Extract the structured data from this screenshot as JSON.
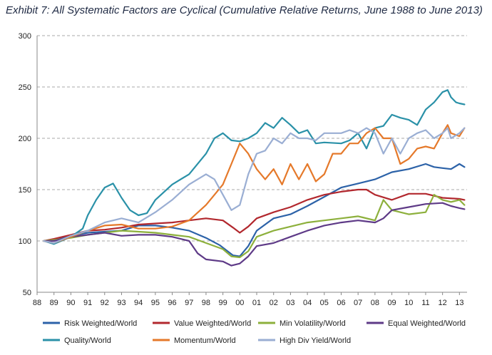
{
  "chart_data": {
    "type": "line",
    "title": "Exhibit 7: All Systematic Factors are Cyclical (Cumulative Relative Returns, June 1988 to June 2013)",
    "xlabel": "",
    "ylabel": "",
    "xlim": [
      1988.0,
      2013.45
    ],
    "ylim": [
      50,
      300
    ],
    "y_ticks": [
      50,
      100,
      150,
      200,
      250,
      300
    ],
    "x_ticks": [
      {
        "label": "88",
        "x": 1988
      },
      {
        "label": "89",
        "x": 1989
      },
      {
        "label": "90",
        "x": 1990
      },
      {
        "label": "91",
        "x": 1991
      },
      {
        "label": "92",
        "x": 1992
      },
      {
        "label": "93",
        "x": 1993
      },
      {
        "label": "94",
        "x": 1994
      },
      {
        "label": "95",
        "x": 1995
      },
      {
        "label": "96",
        "x": 1996
      },
      {
        "label": "97",
        "x": 1997
      },
      {
        "label": "98",
        "x": 1998
      },
      {
        "label": "99",
        "x": 1999
      },
      {
        "label": "00",
        "x": 2000
      },
      {
        "label": "01",
        "x": 2001
      },
      {
        "label": "02",
        "x": 2002
      },
      {
        "label": "03",
        "x": 2003
      },
      {
        "label": "04",
        "x": 2004
      },
      {
        "label": "05",
        "x": 2005
      },
      {
        "label": "06",
        "x": 2006
      },
      {
        "label": "07",
        "x": 2007
      },
      {
        "label": "08",
        "x": 2008
      },
      {
        "label": "09",
        "x": 2009
      },
      {
        "label": "10",
        "x": 2010
      },
      {
        "label": "11",
        "x": 2011
      },
      {
        "label": "12",
        "x": 2012
      },
      {
        "label": "13",
        "x": 2013
      }
    ],
    "grid": "horizontal dashed",
    "legend_position": "bottom",
    "series": [
      {
        "name": "Risk Weighted/World",
        "color": "#2c62a8",
        "x": [
          1988.4,
          1989,
          1989.5,
          1990,
          1991,
          1992,
          1993,
          1994,
          1995,
          1996,
          1997,
          1998,
          1998.8,
          1999.6,
          2000,
          2000.5,
          2001,
          2002,
          2003,
          2004,
          2005,
          2006,
          2007,
          2008,
          2009,
          2010,
          2011,
          2011.5,
          2012,
          2012.5,
          2013,
          2013.3
        ],
        "y": [
          100,
          101,
          103,
          105,
          108,
          109,
          110,
          115,
          115,
          113,
          110,
          103,
          96,
          86,
          85,
          95,
          110,
          122,
          126,
          134,
          143,
          152,
          156,
          160,
          167,
          170,
          175,
          172,
          171,
          170,
          175,
          172
        ]
      },
      {
        "name": "Value Weighted/World",
        "color": "#b2282e",
        "x": [
          1988.4,
          1989,
          1990,
          1991,
          1992,
          1993,
          1994,
          1995,
          1996,
          1997,
          1998,
          1999,
          1999.6,
          2000,
          2000.5,
          2001,
          2002,
          2003,
          2004,
          2005,
          2006,
          2007,
          2007.5,
          2008,
          2009,
          2010,
          2011,
          2012,
          2013,
          2013.3
        ],
        "y": [
          100,
          102,
          106,
          110,
          111,
          113,
          116,
          117,
          118,
          120,
          122,
          120,
          113,
          108,
          114,
          122,
          128,
          133,
          140,
          145,
          148,
          150,
          150,
          145,
          140,
          146,
          146,
          142,
          141,
          140
        ]
      },
      {
        "name": "Min Volatility/World",
        "color": "#8db03c",
        "x": [
          1988.4,
          1989,
          1990,
          1991,
          1992,
          1993,
          1994,
          1995,
          1996,
          1997,
          1998,
          1999,
          1999.5,
          2000,
          2000.5,
          2001,
          2002,
          2003,
          2004,
          2005,
          2006,
          2007,
          2008,
          2008.5,
          2009,
          2010,
          2011,
          2011.5,
          2012,
          2012.5,
          2013,
          2013.3
        ],
        "y": [
          100,
          101,
          103,
          106,
          108,
          110,
          109,
          108,
          106,
          104,
          98,
          92,
          85,
          84,
          90,
          104,
          110,
          114,
          118,
          120,
          122,
          124,
          120,
          140,
          130,
          126,
          128,
          145,
          140,
          138,
          140,
          135
        ]
      },
      {
        "name": "Equal Weighted/World",
        "color": "#5e3a87",
        "x": [
          1988.4,
          1989,
          1990,
          1991,
          1992,
          1993,
          1994,
          1995,
          1996,
          1997,
          1997.5,
          1998,
          1999,
          1999.5,
          2000,
          2000.5,
          2001,
          2002,
          2003,
          2004,
          2005,
          2006,
          2007,
          2008,
          2008.5,
          2009,
          2010,
          2011,
          2012,
          2012.5,
          2013,
          2013.3
        ],
        "y": [
          100,
          100,
          104,
          106,
          108,
          105,
          106,
          106,
          104,
          100,
          88,
          82,
          80,
          76,
          78,
          85,
          95,
          98,
          104,
          110,
          115,
          118,
          120,
          118,
          122,
          130,
          133,
          136,
          137,
          134,
          132,
          131
        ]
      },
      {
        "name": "Quality/World",
        "color": "#2a91a8",
        "x": [
          1988.4,
          1989,
          1990,
          1990.7,
          1991,
          1991.5,
          1992,
          1992.5,
          1993,
          1993.5,
          1994,
          1994.5,
          1995,
          1996,
          1997,
          1998,
          1998.5,
          1999,
          1999.5,
          2000,
          2000.5,
          2001,
          2001.5,
          2002,
          2002.5,
          2003,
          2003.5,
          2004,
          2004.5,
          2005,
          2006,
          2006.5,
          2007,
          2007.5,
          2008,
          2008.5,
          2009,
          2009.5,
          2010,
          2010.5,
          2011,
          2011.5,
          2012,
          2012.3,
          2012.5,
          2012.8,
          2013,
          2013.3
        ],
        "y": [
          100,
          97,
          104,
          112,
          125,
          140,
          152,
          156,
          142,
          130,
          125,
          127,
          140,
          155,
          165,
          185,
          200,
          205,
          198,
          197,
          200,
          205,
          215,
          210,
          220,
          213,
          205,
          208,
          195,
          196,
          195,
          198,
          205,
          190,
          210,
          212,
          223,
          220,
          218,
          213,
          228,
          235,
          245,
          247,
          240,
          235,
          234,
          233
        ]
      },
      {
        "name": "Momentum/World",
        "color": "#e5792a",
        "x": [
          1988.4,
          1989,
          1990,
          1991,
          1992,
          1993,
          1994,
          1995,
          1996,
          1997,
          1998,
          1998.5,
          1999,
          1999.5,
          2000,
          2000.5,
          2001,
          2001.5,
          2002,
          2002.5,
          2003,
          2003.5,
          2004,
          2004.5,
          2005,
          2005.5,
          2006,
          2006.5,
          2007,
          2007.5,
          2008,
          2008.5,
          2009,
          2009.5,
          2010,
          2010.5,
          2011,
          2011.5,
          2012,
          2012.3,
          2012.5,
          2013,
          2013.3
        ],
        "y": [
          100,
          98,
          104,
          110,
          115,
          116,
          112,
          112,
          114,
          120,
          135,
          145,
          155,
          175,
          195,
          185,
          170,
          160,
          170,
          155,
          175,
          160,
          175,
          158,
          165,
          185,
          185,
          195,
          195,
          205,
          210,
          200,
          200,
          175,
          180,
          190,
          192,
          190,
          205,
          213,
          205,
          202,
          210
        ]
      },
      {
        "name": "High Div Yield/World",
        "color": "#9aaed3",
        "x": [
          1988.4,
          1989,
          1990,
          1991,
          1992,
          1993,
          1994,
          1995,
          1996,
          1997,
          1998,
          1998.5,
          1999,
          1999.5,
          2000,
          2000.5,
          2001,
          2001.5,
          2002,
          2002.5,
          2003,
          2003.5,
          2004,
          2004.5,
          2005,
          2005.5,
          2006,
          2006.5,
          2007,
          2007.5,
          2008,
          2008.5,
          2009,
          2009.5,
          2010,
          2010.5,
          2011,
          2011.5,
          2012,
          2012.3,
          2012.5,
          2013,
          2013.3
        ],
        "y": [
          100,
          98,
          105,
          110,
          118,
          122,
          118,
          128,
          140,
          155,
          165,
          160,
          145,
          130,
          135,
          165,
          185,
          188,
          200,
          195,
          205,
          200,
          200,
          198,
          205,
          205,
          205,
          208,
          205,
          210,
          205,
          185,
          200,
          185,
          200,
          205,
          208,
          200,
          205,
          210,
          200,
          205,
          210
        ]
      }
    ]
  }
}
